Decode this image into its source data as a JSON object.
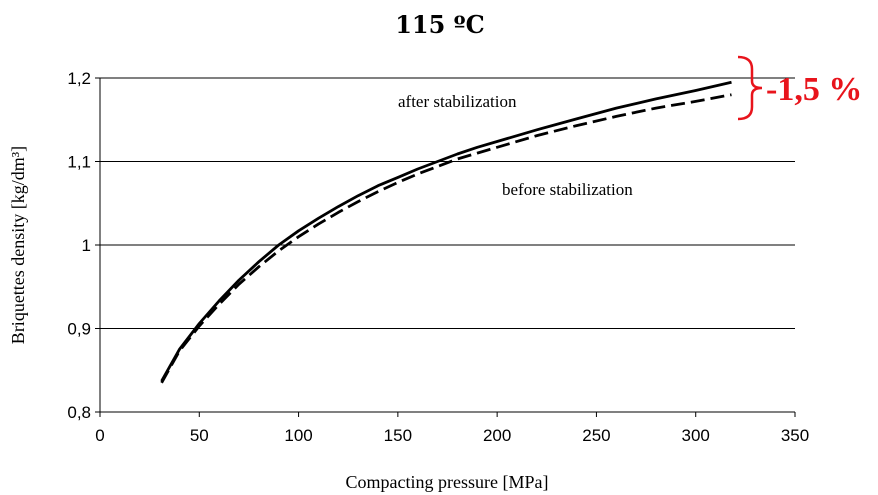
{
  "chart_data": {
    "type": "line",
    "title": "115 ºC",
    "xlabel": "Compacting pressure [MPa]",
    "ylabel": "Briquettes density [kg/dm³]",
    "xlim": [
      0,
      350
    ],
    "ylim": [
      0.8,
      1.2
    ],
    "x_ticks": [
      0,
      50,
      100,
      150,
      200,
      250,
      300,
      350
    ],
    "x_tick_labels": [
      "0",
      "50",
      "100",
      "150",
      "200",
      "250",
      "300",
      "350"
    ],
    "y_ticks": [
      0.8,
      0.9,
      1.0,
      1.1,
      1.2
    ],
    "y_tick_labels": [
      "0,8",
      "0,9",
      "1",
      "1,1",
      "1,2"
    ],
    "grid": {
      "horizontal": true,
      "vertical": false
    },
    "series": [
      {
        "style": "solid",
        "color": "#000000",
        "x": [
          31,
          40,
          50,
          60,
          70,
          80,
          90,
          100,
          110,
          120,
          130,
          140,
          150,
          160,
          170,
          180,
          190,
          200,
          220,
          240,
          260,
          280,
          300,
          318
        ],
        "y": [
          0.837,
          0.875,
          0.906,
          0.933,
          0.958,
          0.98,
          1.0,
          1.017,
          1.032,
          1.046,
          1.059,
          1.071,
          1.081,
          1.091,
          1.1,
          1.109,
          1.117,
          1.124,
          1.138,
          1.151,
          1.164,
          1.175,
          1.185,
          1.195
        ]
      },
      {
        "style": "dashed",
        "color": "#000000",
        "x": [
          31,
          40,
          50,
          60,
          70,
          80,
          90,
          100,
          110,
          120,
          130,
          140,
          150,
          160,
          170,
          180,
          190,
          200,
          220,
          240,
          260,
          280,
          300,
          318
        ],
        "y": [
          0.835,
          0.873,
          0.903,
          0.929,
          0.953,
          0.974,
          0.993,
          1.01,
          1.025,
          1.039,
          1.052,
          1.064,
          1.075,
          1.085,
          1.094,
          1.103,
          1.11,
          1.117,
          1.131,
          1.143,
          1.154,
          1.164,
          1.172,
          1.18
        ]
      }
    ],
    "annotations": [
      {
        "text": "after stabilization",
        "x": 225,
        "y": 1.17
      },
      {
        "text": "before stabilization",
        "x": 275,
        "y": 1.063
      },
      {
        "text": "-1,5 %",
        "color": "#e8141c"
      }
    ]
  }
}
